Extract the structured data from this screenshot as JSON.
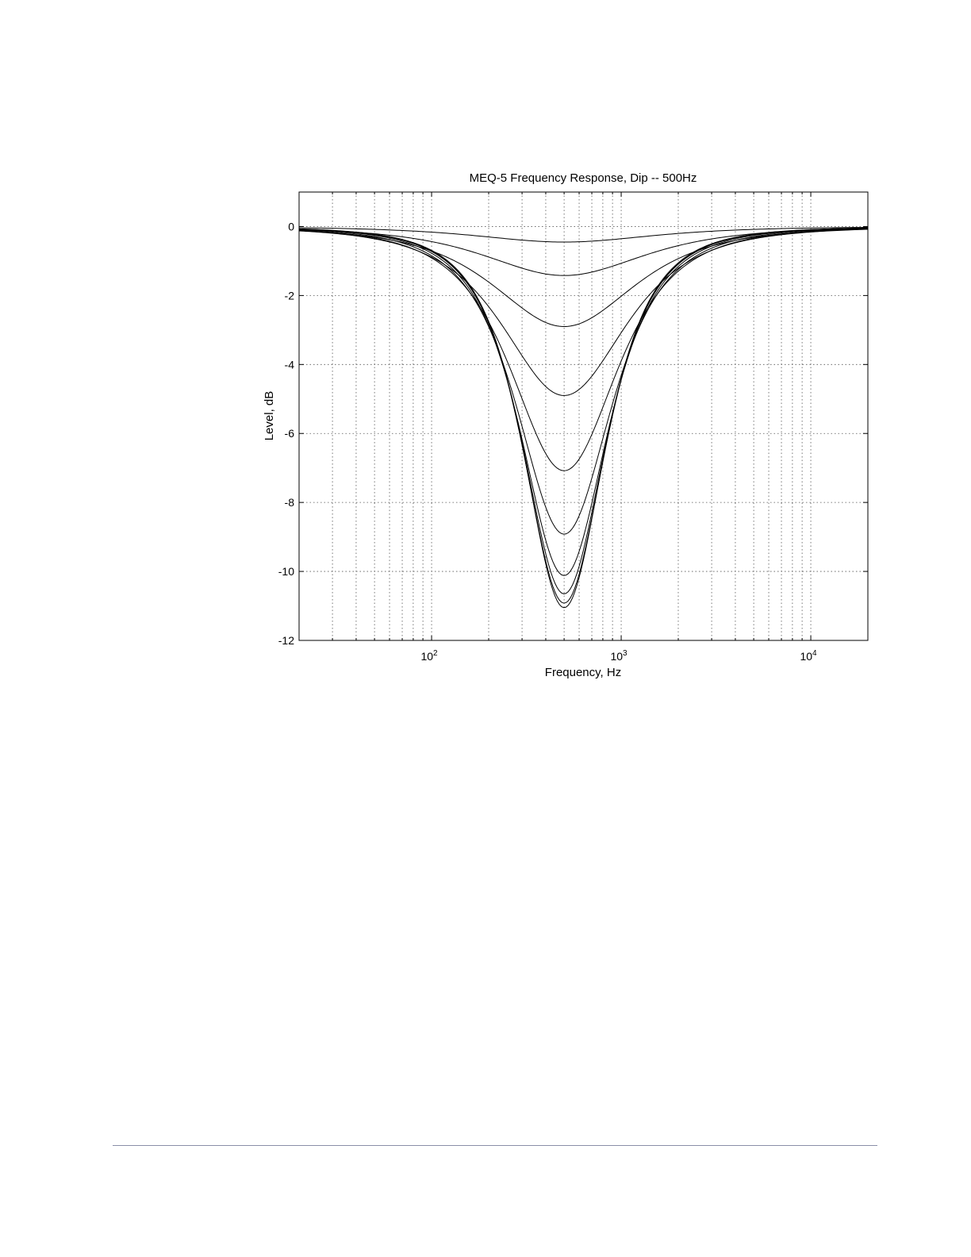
{
  "chart_data": {
    "type": "line",
    "title": "MEQ-5 Frequency Response, Dip -- 500Hz",
    "xlabel": "Frequency, Hz",
    "ylabel": "Level, dB",
    "xscale": "log",
    "xlim": [
      20,
      20000
    ],
    "ylim": [
      -12,
      1
    ],
    "grid": true,
    "x_ticks": [
      {
        "value": 100,
        "base": "10",
        "exp": "2"
      },
      {
        "value": 1000,
        "base": "10",
        "exp": "3"
      },
      {
        "value": 10000,
        "base": "10",
        "exp": "4"
      }
    ],
    "y_ticks": [
      {
        "value": 0,
        "label": "0"
      },
      {
        "value": -2,
        "label": "-2"
      },
      {
        "value": -4,
        "label": "-4"
      },
      {
        "value": -6,
        "label": "-6"
      },
      {
        "value": -8,
        "label": "-8"
      },
      {
        "value": -10,
        "label": "-10"
      },
      {
        "value": -12,
        "label": "-12"
      }
    ],
    "center_frequency_hz": 500,
    "series": [
      {
        "depth_db": -0.45,
        "half_width_decades": 0.75
      },
      {
        "depth_db": -1.42,
        "half_width_decades": 0.68
      },
      {
        "depth_db": -2.9,
        "half_width_decades": 0.6
      },
      {
        "depth_db": -4.9,
        "half_width_decades": 0.52
      },
      {
        "depth_db": -7.08,
        "half_width_decades": 0.45
      },
      {
        "depth_db": -8.92,
        "half_width_decades": 0.4
      },
      {
        "depth_db": -10.12,
        "half_width_decades": 0.37
      },
      {
        "depth_db": -10.65,
        "half_width_decades": 0.355
      },
      {
        "depth_db": -10.92,
        "half_width_decades": 0.35
      },
      {
        "depth_db": -11.05,
        "half_width_decades": 0.345
      }
    ],
    "line_color": "#000000"
  }
}
